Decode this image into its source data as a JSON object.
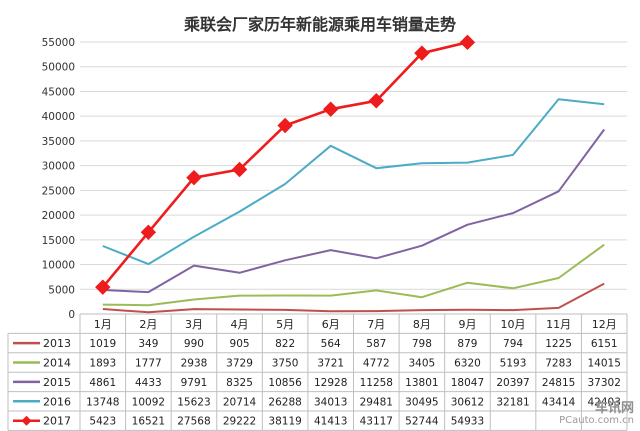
{
  "chart_data": {
    "type": "line",
    "title": "乘联会厂家历年新能源乘用车销量走势",
    "categories": [
      "1月",
      "2月",
      "3月",
      "4月",
      "5月",
      "6月",
      "7月",
      "8月",
      "9月",
      "10月",
      "11月",
      "12月"
    ],
    "ylim": [
      0,
      55000
    ],
    "yticks": [
      0,
      5000,
      10000,
      15000,
      20000,
      25000,
      30000,
      35000,
      40000,
      45000,
      50000,
      55000
    ],
    "grid": true,
    "legend": "table-below",
    "series": [
      {
        "name": "2013",
        "color": "#c0504d",
        "marker": "none",
        "values": [
          1019,
          349,
          990,
          905,
          822,
          564,
          587,
          798,
          879,
          794,
          1225,
          6151
        ]
      },
      {
        "name": "2014",
        "color": "#9bbb59",
        "marker": "none",
        "values": [
          1893,
          1777,
          2938,
          3729,
          3750,
          3721,
          4772,
          3405,
          6320,
          5193,
          7283,
          14015
        ]
      },
      {
        "name": "2015",
        "color": "#8064a2",
        "marker": "none",
        "values": [
          4861,
          4433,
          9791,
          8325,
          10856,
          12928,
          11258,
          13801,
          18047,
          20397,
          24815,
          37302
        ]
      },
      {
        "name": "2016",
        "color": "#4bacc6",
        "marker": "none",
        "values": [
          13748,
          10092,
          15623,
          20714,
          26288,
          34013,
          29481,
          30495,
          30612,
          32181,
          43414,
          42403
        ]
      },
      {
        "name": "2017",
        "color": "#ee1c1c",
        "marker": "diamond",
        "values": [
          5423,
          16521,
          27568,
          29222,
          38119,
          41413,
          43117,
          52744,
          54933,
          null,
          null,
          null
        ]
      }
    ]
  },
  "watermark": {
    "line1": "车讯网",
    "line2": "PCauto.com.cn"
  }
}
